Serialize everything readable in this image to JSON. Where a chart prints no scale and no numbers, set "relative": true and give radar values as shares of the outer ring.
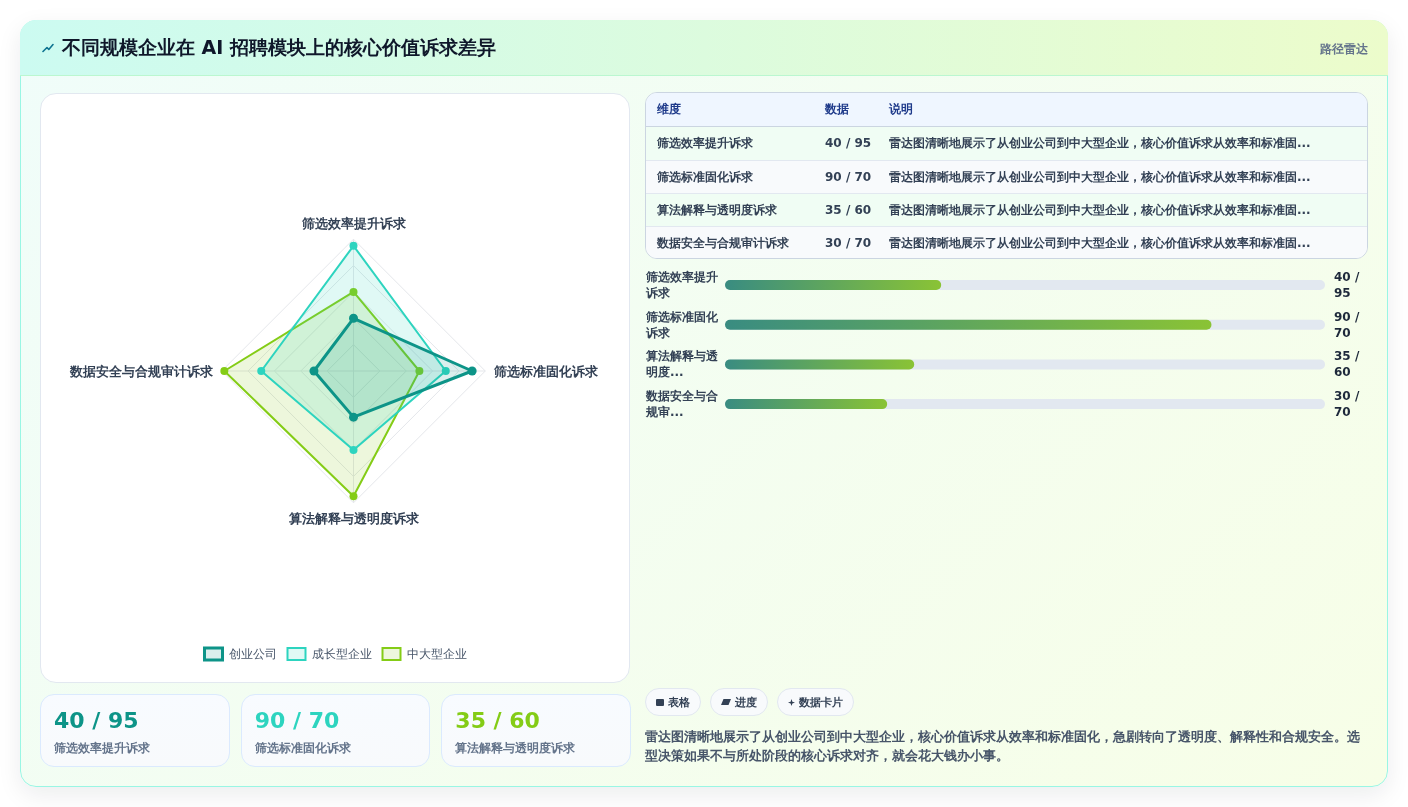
{
  "chart_data": [
    {
      "type": "other",
      "title": "不同规模企业在 AI 招聘模块上的核心价值诉求差异",
      "annotations": [
        "路径雷达"
      ]
    },
    {
      "type": "radar",
      "relative": true,
      "categories": [
        "筛选效率提升诉求",
        "筛选标准固化诉求",
        "算法解释与透明度诉求",
        "数据安全与合规审计诉求"
      ],
      "series": [
        {
          "name": "创业公司",
          "color": "#0d9488",
          "values": [
            0.4,
            0.9,
            0.35,
            0.3
          ]
        },
        {
          "name": "成长型企业",
          "color": "#2dd4bf",
          "values": [
            0.95,
            0.7,
            0.6,
            0.7
          ]
        },
        {
          "name": "中大型企业",
          "color": "#84cc16",
          "values": [
            0.6,
            0.5,
            0.95,
            0.98
          ]
        }
      ],
      "grid": true,
      "legend": "bottom",
      "marker": "circle"
    },
    {
      "type": "other",
      "categories": [
        "维度",
        "数据",
        "说明"
      ],
      "cell_labels": [
        [
          "筛选效率提升诉求",
          "40 / 95",
          "雷达图清晰地展示了从创业公司到中大型企业，核心价值诉求从效率和标准固..."
        ],
        [
          "筛选标准固化诉求",
          "90 / 70",
          "雷达图清晰地展示了从创业公司到中大型企业，核心价值诉求从效率和标准固..."
        ],
        [
          "算法解释与透明度诉求",
          "35 / 60",
          "雷达图清晰地展示了从创业公司到中大型企业，核心价值诉求从效率和标准固..."
        ],
        [
          "数据安全与合规审计诉求",
          "30 / 70",
          "雷达图清晰地展示了从创业公司到中大型企业，核心价值诉求从效率和标准固..."
        ]
      ]
    },
    {
      "type": "bar",
      "orientation": "horizontal",
      "categories": [
        "筛选效率提升诉求",
        "筛选标准固化诉求",
        "算法解释与透明度...",
        "数据安全与合规审..."
      ],
      "values": [
        40,
        90,
        35,
        30
      ],
      "value_labels": [
        "40 / 95",
        "90 / 70",
        "35 / 60",
        "30 / 70"
      ],
      "color": "#48b04f",
      "xlim": [
        0,
        111
      ],
      "tick_labels": "y"
    },
    {
      "type": "other",
      "categories": [
        "筛选效率提升诉求",
        "筛选标准固化诉求",
        "算法解释与透明度诉求"
      ],
      "value_labels": [
        "40 / 95",
        "90 / 70",
        "35 / 60"
      ]
    },
    {
      "type": "other",
      "categories": [
        "表格",
        "进度",
        "数据卡片"
      ],
      "annotations": [
        "雷达图清晰地展示了从创业公司到中大型企业，核心价值诉求从效率和标准固化，急剧转向了透明度、解释性和合规安全。选型决策如果不与所处阶段的核心诉求对齐，就会花大钱办小事。"
      ]
    }
  ]
}
